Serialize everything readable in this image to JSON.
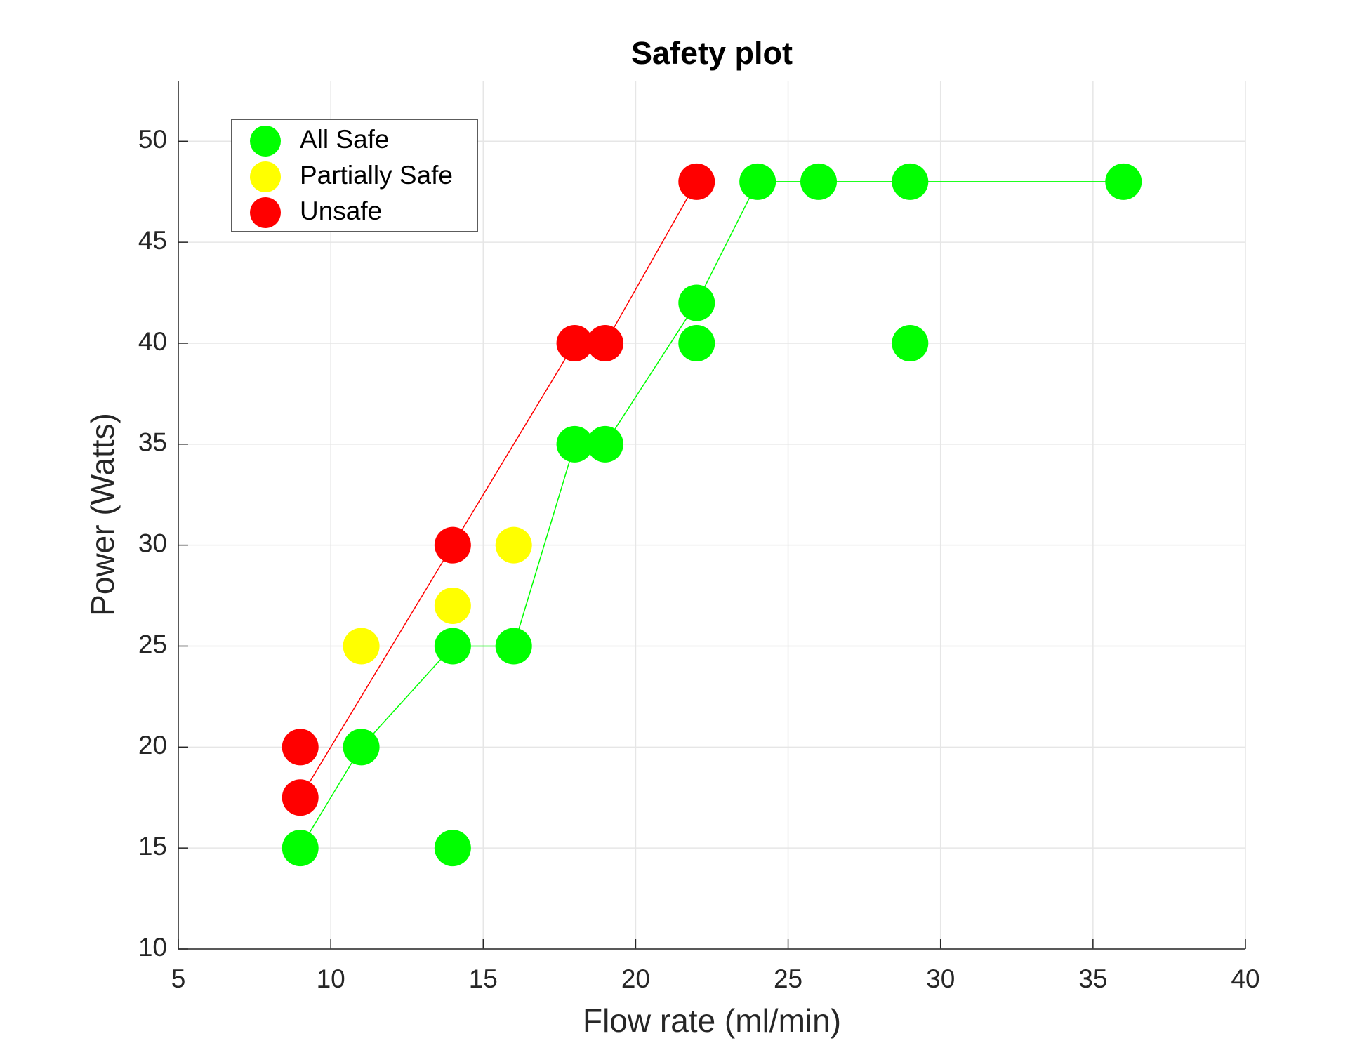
{
  "chart_data": {
    "type": "scatter",
    "title": "Safety plot",
    "x_label": "Flow rate (ml/min)",
    "y_label": "Power (Watts)",
    "xlim": [
      5,
      40
    ],
    "ylim": [
      10,
      53
    ],
    "xticks": [
      5,
      10,
      15,
      20,
      25,
      30,
      35,
      40
    ],
    "yticks": [
      10,
      15,
      20,
      25,
      30,
      35,
      40,
      45,
      50
    ],
    "grid": true,
    "legend": "upper left",
    "series": [
      {
        "name": "All Safe",
        "color": "#00ff00",
        "x": [
          9,
          11,
          14,
          14,
          16,
          18,
          19,
          22,
          22,
          24,
          26,
          29,
          29,
          36
        ],
        "values": [
          15,
          20,
          25,
          15,
          25,
          35,
          35,
          40,
          42,
          48,
          48,
          48,
          40,
          48
        ]
      },
      {
        "name": "Partially Safe",
        "color": "#ffff00",
        "x": [
          11,
          14,
          16
        ],
        "values": [
          25,
          27,
          30
        ]
      },
      {
        "name": "Unsafe",
        "color": "#ff0000",
        "x": [
          9,
          9,
          14,
          18,
          19,
          22
        ],
        "values": [
          20,
          17.5,
          30,
          40,
          40,
          48
        ]
      }
    ],
    "boundaries": [
      {
        "color": "#00ff00",
        "x": [
          9,
          11,
          14,
          16,
          18,
          19,
          22,
          24,
          26,
          29,
          36
        ],
        "values": [
          15,
          20,
          25,
          25,
          35,
          35,
          42,
          48,
          48,
          48,
          48
        ]
      },
      {
        "color": "#ff0000",
        "x": [
          9,
          14,
          18,
          19,
          22
        ],
        "values": [
          17.5,
          30,
          40,
          40,
          48
        ]
      }
    ]
  }
}
